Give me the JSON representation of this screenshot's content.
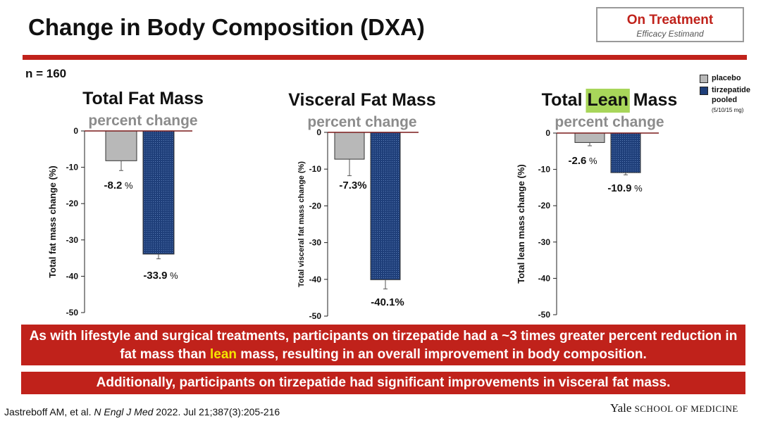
{
  "slide": {
    "title": "Change in Body Composition (DXA)",
    "badge_main": "On Treatment",
    "badge_sub": "Efficacy Estimand",
    "n_label": "n = 160",
    "message_1_part1": "As with lifestyle and surgical treatments, participants on tirzepatide had a ~3 times greater percent reduction in fat mass than ",
    "message_1_highlight": "lean",
    "message_1_part2": " mass, resulting in an overall improvement in body composition.",
    "message_2": "Additionally, participants on tirzepatide had significant improvements in visceral fat mass.",
    "citation_authors": "Jastreboff AM, et al. ",
    "citation_journal": "N Engl J Med",
    "citation_rest": " 2022. Jul 21;387(3):205-216",
    "logo_main": "Yale",
    "logo_small": "SCHOOL OF MEDICINE"
  },
  "legend": {
    "placebo": "placebo",
    "tirzepatide_line1": "tirzepatide",
    "tirzepatide_line2": "pooled",
    "tirzepatide_note": "(5/10/15 mg)"
  },
  "colors": {
    "accent_red": "#c0221b",
    "placebo": "#b8b8b8",
    "tirzepatide": "#1f3f7a",
    "lean_highlight": "#a8d65a",
    "subtitle_gray": "#8c8c8c"
  },
  "chart_data": [
    {
      "type": "bar",
      "title": "Total Fat Mass",
      "subtitle": "percent change",
      "ylabel": "Total fat mass change (%)",
      "ylim": [
        -50,
        0
      ],
      "yticks": [
        "0",
        "-10",
        "-20",
        "-30",
        "-40",
        "-50"
      ],
      "categories": [
        "placebo",
        "tirzepatide pooled"
      ],
      "values": [
        -8.2,
        -33.9
      ],
      "errors": [
        2.7,
        1.3
      ],
      "data_labels": [
        "-8.2",
        "-33.9"
      ],
      "label_units": [
        "%",
        "%"
      ]
    },
    {
      "type": "bar",
      "title": "Visceral Fat Mass",
      "subtitle": "percent change",
      "ylabel": "Total visceral fat mass change (%)",
      "ylim": [
        -50,
        0
      ],
      "yticks": [
        "0",
        "-10",
        "-20",
        "-30",
        "-40",
        "-50"
      ],
      "categories": [
        "placebo",
        "tirzepatide pooled"
      ],
      "values": [
        -7.3,
        -40.1
      ],
      "errors": [
        4.5,
        2.5
      ],
      "data_labels": [
        "-7.3%",
        "-40.1%"
      ],
      "label_units": [
        "",
        ""
      ]
    },
    {
      "type": "bar",
      "title_parts": [
        "Total ",
        "Lean",
        " Mass"
      ],
      "subtitle": "percent change",
      "ylabel": "Total lean mass change (%)",
      "ylim": [
        -50,
        0
      ],
      "yticks": [
        "0",
        "-10",
        "-20",
        "-30",
        "-40",
        "-50"
      ],
      "categories": [
        "placebo",
        "tirzepatide pooled"
      ],
      "values": [
        -2.6,
        -10.9
      ],
      "errors": [
        0.9,
        0.6
      ],
      "data_labels": [
        "-2.6",
        "-10.9"
      ],
      "label_units": [
        "%",
        "%"
      ]
    }
  ]
}
